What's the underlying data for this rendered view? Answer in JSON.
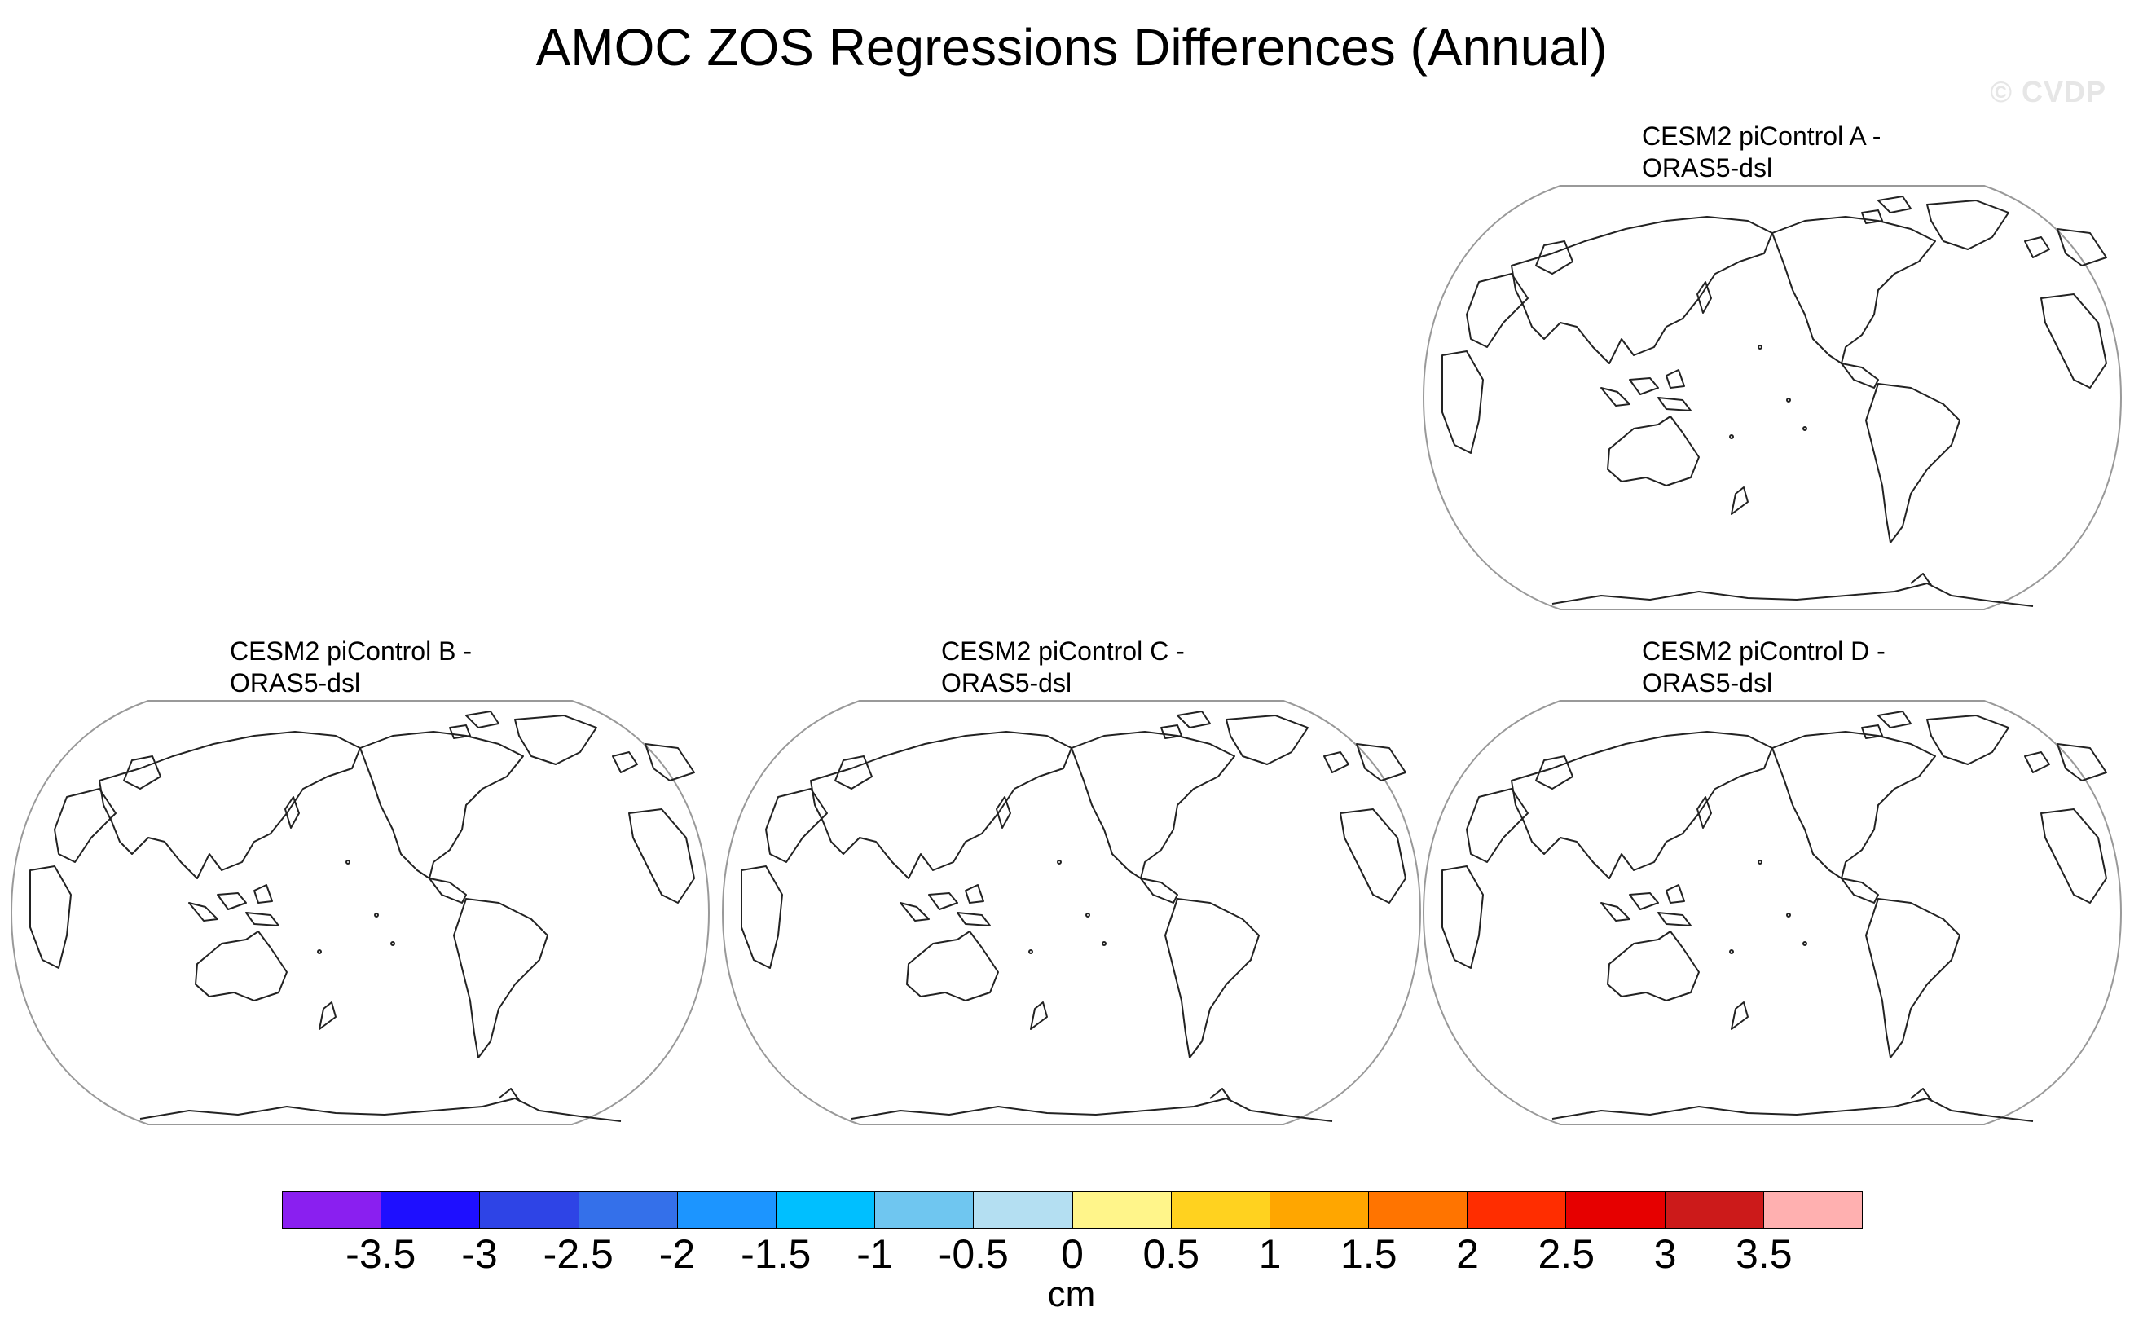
{
  "title": "AMOC ZOS Regressions Differences (Annual)",
  "watermark": "© CVDP",
  "panels": [
    {
      "line1": "CESM2 piControl A -",
      "line2": "ORAS5-dsl"
    },
    {
      "line1": "CESM2 piControl B -",
      "line2": "ORAS5-dsl"
    },
    {
      "line1": "CESM2 piControl C -",
      "line2": "ORAS5-dsl"
    },
    {
      "line1": "CESM2 piControl D -",
      "line2": "ORAS5-dsl"
    }
  ],
  "colorbar": {
    "colors": [
      "#8a1ff0",
      "#1e0fff",
      "#2e44e6",
      "#3470ea",
      "#1c95ff",
      "#00bfff",
      "#6fc6f0",
      "#b4dff2",
      "#fff58a",
      "#ffd21f",
      "#ffa600",
      "#ff7400",
      "#ff2d00",
      "#e60000",
      "#cc1a1a",
      "#ffb0b0"
    ],
    "ticks": [
      "-3.5",
      "-3",
      "-2.5",
      "-2",
      "-1.5",
      "-1",
      "-0.5",
      "0",
      "0.5",
      "1",
      "1.5",
      "2",
      "2.5",
      "3",
      "3.5"
    ],
    "label": "cm"
  }
}
